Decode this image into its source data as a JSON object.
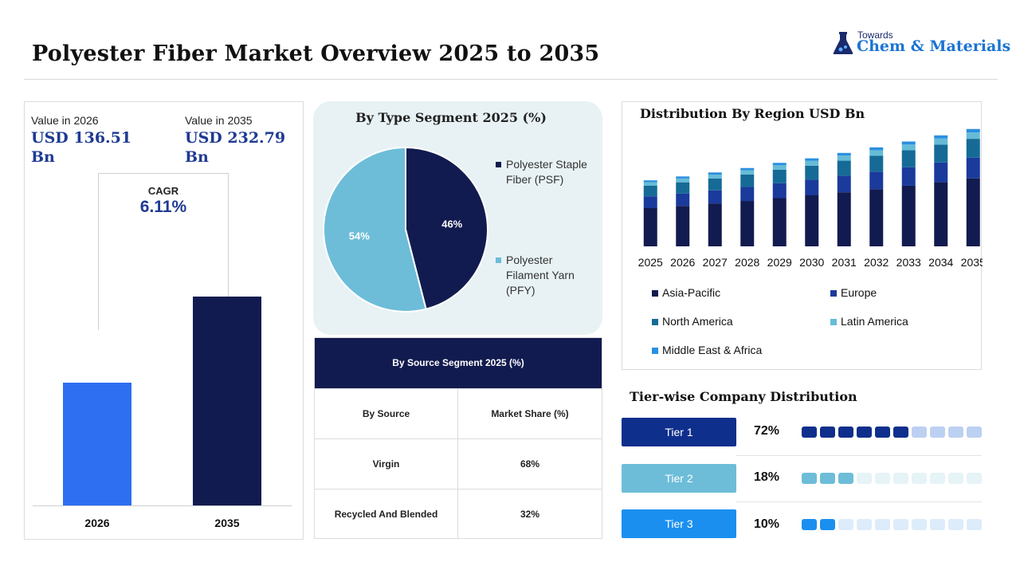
{
  "header": {
    "title": "Polyester Fiber Market Overview 2025 to 2035",
    "logo_small": "Towards",
    "logo_big": "Chem & Materials"
  },
  "colors": {
    "navy": "#121b4f",
    "blue": "#2e6ff2",
    "value_text": "#1f3a93",
    "pie_psf": "#121b4f",
    "pie_pfy": "#6dbdd9",
    "asia_pacific": "#121b4f",
    "europe": "#1a3a9c",
    "north_america": "#156b96",
    "latin_america": "#66bcd6",
    "middle_east_africa": "#2b8fe0"
  },
  "value_panel": {
    "value_2026_label": "Value in 2026",
    "value_2026": "USD 136.51 Bn",
    "value_2035_label": "Value in 2035",
    "value_2035": "USD 232.79 Bn",
    "cagr_label": "CAGR",
    "cagr_value": "6.11%"
  },
  "pie_panel": {
    "title": "By Type Segment 2025 (%)",
    "legend": [
      {
        "name": "Polyester Staple Fiber (PSF)"
      },
      {
        "name": "Polyester Filament Yarn (PFY)"
      }
    ]
  },
  "source_table": {
    "title": "By Source  Segment 2025 (%)",
    "headers": [
      "By Source",
      "Market Share (%)"
    ],
    "rows": [
      [
        "Virgin",
        "68%"
      ],
      [
        "Recycled And Blended",
        "32%"
      ]
    ]
  },
  "region_panel": {
    "title": "Distribution  By Region USD Bn",
    "legend": [
      "Asia-Pacific",
      "Europe",
      "North America",
      "Latin America",
      "Middle East & Africa"
    ]
  },
  "tiers": {
    "title": "Tier-wise Company Distribution",
    "items": [
      {
        "label": "Tier 1",
        "pct": "72%",
        "value": 72,
        "filled": 6,
        "color": "#0f2f8c",
        "bg": "#bcd0f2"
      },
      {
        "label": "Tier 2",
        "pct": "18%",
        "value": 18,
        "filled": 3,
        "color": "#6dbdd9",
        "bg": "#e6f3f7"
      },
      {
        "label": "Tier 3",
        "pct": "10%",
        "value": 10,
        "filled": 2,
        "color": "#1a8ff0",
        "bg": "#dcecfb"
      }
    ]
  },
  "chart_data": [
    {
      "type": "bar",
      "categories": [
        "2026",
        "2035"
      ],
      "values": [
        136.51,
        232.79
      ],
      "ylim": [
        0,
        275
      ]
    },
    {
      "type": "pie",
      "title": "By Type Segment 2025 (%)",
      "labels": [
        "Polyester Staple Fiber (PSF)",
        "Polyester Filament Yarn (PFY)"
      ],
      "values": [
        46,
        54
      ],
      "value_labels": [
        "46%",
        "54%"
      ]
    },
    {
      "type": "bar",
      "stacked": true,
      "title": "Distribution  By Region USD Bn",
      "categories": [
        "2025",
        "2026",
        "2027",
        "2028",
        "2029",
        "2030",
        "2031",
        "2032",
        "2033",
        "2034",
        "2035"
      ],
      "series": [
        {
          "name": "Asia-Pacific",
          "values": [
            60.0,
            63.4,
            67.3,
            71.2,
            75.6,
            80.0,
            84.8,
            89.7,
            95.1,
            100.5,
            106.6
          ]
        },
        {
          "name": "Europe",
          "values": [
            18.5,
            19.5,
            20.5,
            22.0,
            23.5,
            24.5,
            26.0,
            27.5,
            29.0,
            31.0,
            32.5
          ]
        },
        {
          "name": "North America",
          "values": [
            16.5,
            17.5,
            18.5,
            19.5,
            21.0,
            22.0,
            23.5,
            25.0,
            26.5,
            28.0,
            29.5
          ]
        },
        {
          "name": "Latin America",
          "values": [
            5.5,
            6.0,
            6.2,
            6.5,
            7.0,
            7.5,
            8.0,
            8.5,
            9.0,
            9.5,
            10.0
          ]
        },
        {
          "name": "Middle East & Africa",
          "values": [
            3.0,
            3.2,
            3.4,
            3.6,
            3.8,
            4.0,
            4.2,
            4.5,
            4.8,
            5.0,
            5.4
          ]
        }
      ]
    }
  ]
}
